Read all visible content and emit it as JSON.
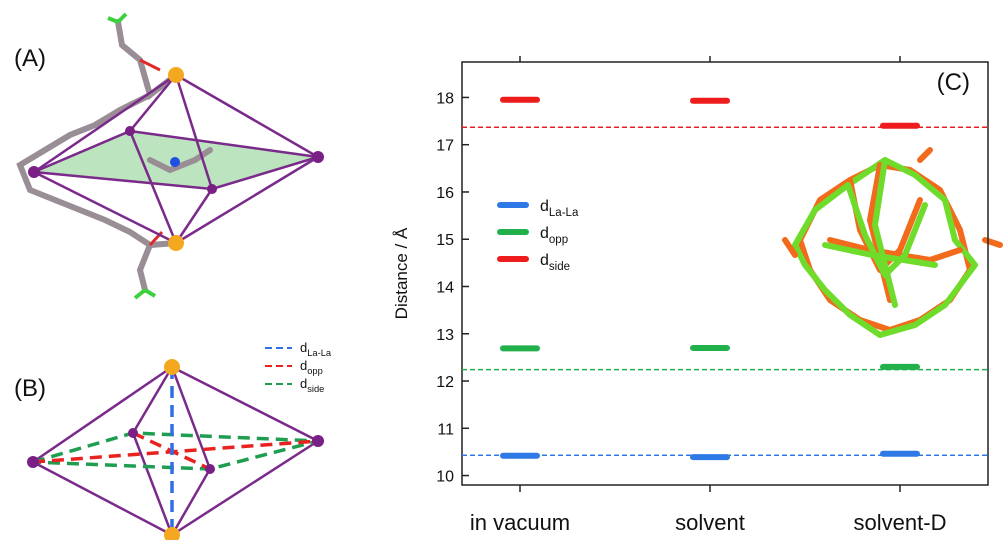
{
  "panel_labels": [
    "(A)",
    "(B)"
  ],
  "panel_b_legend": [
    {
      "name": "d",
      "subscript": "La-La",
      "color": "#2f6fe8"
    },
    {
      "name": "d",
      "subscript": "opp",
      "color": "#e8231f"
    },
    {
      "name": "d",
      "subscript": "side",
      "color": "#1f9e52"
    }
  ],
  "chart_data": {
    "type": "level",
    "title": "(C)",
    "y_label": "Distance / Å",
    "categories": [
      "in vacuum",
      "solvent",
      "solvent-D"
    ],
    "series": [
      {
        "name": "d",
        "subscript": "La-La",
        "color": "#2f79e6",
        "values": [
          10.42,
          10.39,
          10.46
        ]
      },
      {
        "name": "d",
        "subscript": "opp",
        "color": "#22b04b",
        "values": [
          12.69,
          12.7,
          12.3
        ]
      },
      {
        "name": "d",
        "subscript": "side",
        "color": "#ee1c1c",
        "values": [
          17.95,
          17.93,
          17.4
        ]
      }
    ],
    "reference_lines": [
      {
        "value": 17.37,
        "color": "#ee1c1c"
      },
      {
        "value": 12.24,
        "color": "#22b04b"
      },
      {
        "value": 10.43,
        "color": "#2f79e6"
      }
    ],
    "ylim": [
      9.8,
      18.75
    ],
    "yticks": [
      10,
      11,
      12,
      13,
      14,
      15,
      16,
      17,
      18
    ]
  }
}
